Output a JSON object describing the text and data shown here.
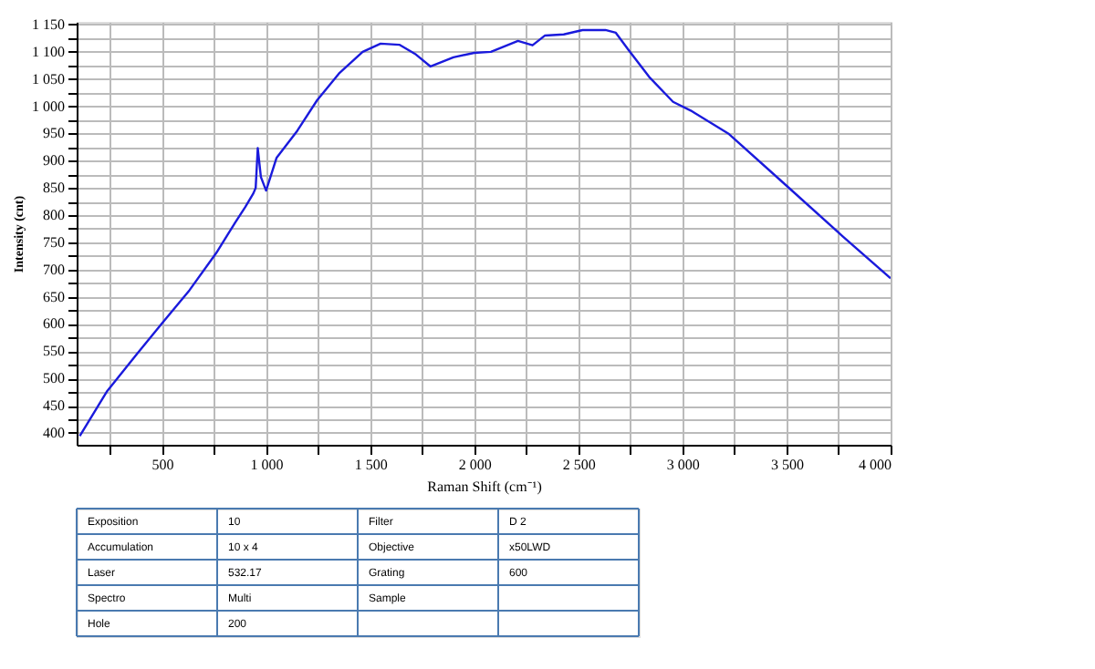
{
  "chart_data": {
    "type": "line",
    "xlabel": "Raman Shift (cm⁻¹)",
    "ylabel": "Intensity (cnt)",
    "x": [
      105,
      237,
      380,
      500,
      632,
      760,
      851,
      900,
      939,
      950,
      960,
      975,
      1000,
      1050,
      1150,
      1245,
      1350,
      1464,
      1550,
      1640,
      1720,
      1790,
      1900,
      2000,
      2080,
      2210,
      2280,
      2340,
      2430,
      2520,
      2630,
      2680,
      2740,
      2840,
      2955,
      3040,
      3220,
      3500,
      3770,
      4000
    ],
    "series": [
      {
        "color": "#1a1adc",
        "values": [
          394,
          477,
          545,
          601,
          662,
          730,
          786,
          815,
          840,
          850,
          923,
          870,
          845,
          905,
          955,
          1011,
          1060,
          1100,
          1115,
          1113,
          1095,
          1073,
          1090,
          1098,
          1100,
          1120,
          1112,
          1130,
          1132,
          1140,
          1140,
          1135,
          1104,
          1054,
          1008,
          992,
          950,
          854,
          761,
          684
        ]
      }
    ],
    "xlim": [
      90,
      4000
    ],
    "ylim": [
      378,
      1155
    ],
    "xticks": [
      {
        "value": 250,
        "label": null
      },
      {
        "value": 500,
        "label": "500"
      },
      {
        "value": 750,
        "label": null
      },
      {
        "value": 1000,
        "label": "1 000"
      },
      {
        "value": 1250,
        "label": null
      },
      {
        "value": 1500,
        "label": "1 500"
      },
      {
        "value": 1750,
        "label": null
      },
      {
        "value": 2000,
        "label": "2 000"
      },
      {
        "value": 2250,
        "label": null
      },
      {
        "value": 2500,
        "label": "2 500"
      },
      {
        "value": 2750,
        "label": null
      },
      {
        "value": 3000,
        "label": "3 000"
      },
      {
        "value": 3250,
        "label": null
      },
      {
        "value": 3500,
        "label": "3 500"
      },
      {
        "value": 3750,
        "label": null
      },
      {
        "value": 4000,
        "label": "4 000"
      }
    ],
    "yticks": [
      400,
      {
        "value": 425,
        "label": null
      },
      450,
      {
        "value": 475,
        "label": null
      },
      500,
      {
        "value": 525,
        "label": null
      },
      550,
      {
        "value": 575,
        "label": null
      },
      600,
      {
        "value": 625,
        "label": null
      },
      650,
      {
        "value": 675,
        "label": null
      },
      700,
      {
        "value": 725,
        "label": null
      },
      750,
      {
        "value": 775,
        "label": null
      },
      800,
      {
        "value": 825,
        "label": null
      },
      850,
      {
        "value": 875,
        "label": null
      },
      900,
      {
        "value": 925,
        "label": null
      },
      950,
      {
        "value": 975,
        "label": null
      },
      {
        "value": 1000,
        "label": "1 000"
      },
      {
        "value": 1025,
        "label": null
      },
      {
        "value": 1050,
        "label": "1 050"
      },
      {
        "value": 1075,
        "label": null
      },
      {
        "value": 1100,
        "label": "1 100"
      },
      {
        "value": 1125,
        "label": null
      },
      {
        "value": 1150,
        "label": "1 150"
      }
    ],
    "grid": true,
    "marker": "none",
    "line_style": "solid",
    "annotations": [
      "Exposition",
      "10",
      "Filter",
      "D 2",
      "Accumulation",
      "10 x 4",
      "Objective",
      "x50LWD",
      "Laser",
      "532.17",
      "Grating",
      "600",
      "Spectro",
      "Multi",
      "Sample",
      "Hole",
      "200"
    ]
  }
}
